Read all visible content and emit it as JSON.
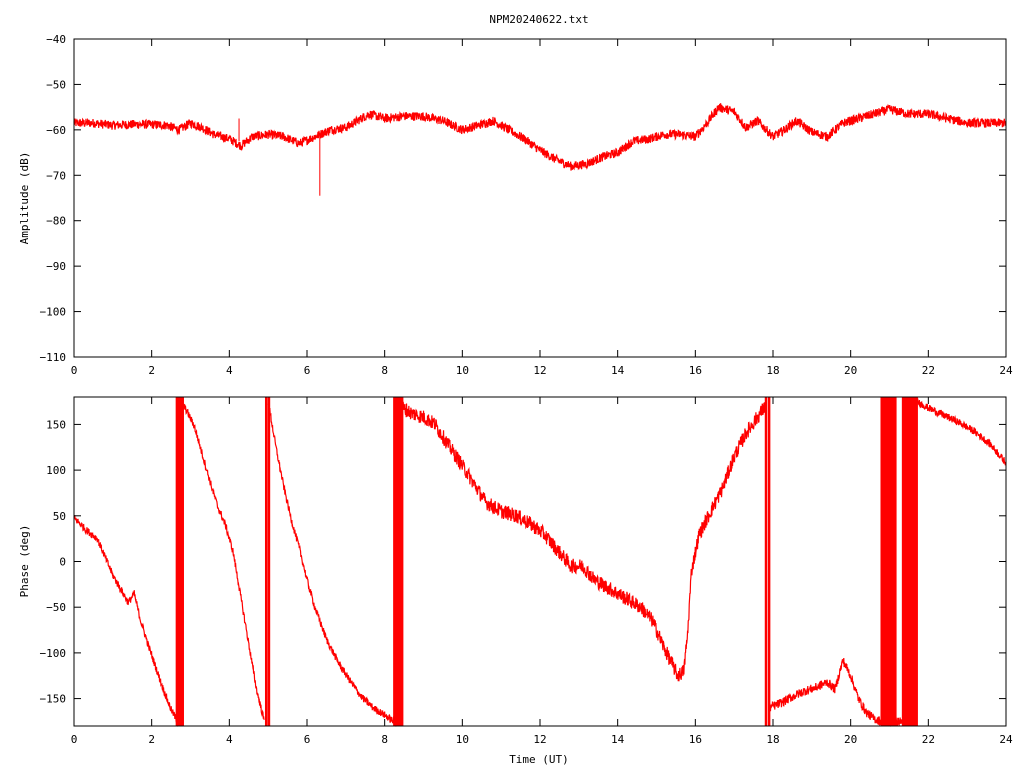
{
  "title": "NPM20240622.txt",
  "colors": {
    "series": "#ff0000",
    "axis": "#000000",
    "background": "#ffffff"
  },
  "chart_data": [
    {
      "type": "line",
      "id": "amplitude",
      "title": "NPM20240622.txt",
      "xlabel": "",
      "ylabel": "Amplitude (dB)",
      "xlim": [
        0,
        24
      ],
      "ylim": [
        -110,
        -40
      ],
      "xticks": [
        0,
        2,
        4,
        6,
        8,
        10,
        12,
        14,
        16,
        18,
        20,
        22,
        24
      ],
      "yticks": [
        -110,
        -100,
        -90,
        -80,
        -70,
        -60,
        -50,
        -40
      ],
      "grid": false,
      "legend": "none",
      "series": [
        {
          "name": "",
          "color": "#ff0000",
          "x": [
            0,
            0.5,
            1.0,
            1.5,
            2.0,
            2.4,
            2.7,
            3.0,
            3.3,
            3.6,
            4.0,
            4.3,
            4.6,
            5.0,
            5.4,
            5.8,
            6.2,
            6.6,
            7.0,
            7.3,
            7.6,
            8.0,
            8.5,
            9.0,
            9.5,
            10.0,
            10.4,
            10.8,
            11.2,
            11.6,
            12.0,
            12.4,
            12.8,
            13.2,
            13.6,
            14.0,
            14.4,
            14.8,
            15.2,
            15.6,
            16.0,
            16.3,
            16.6,
            17.0,
            17.3,
            17.6,
            18.0,
            18.3,
            18.6,
            19.0,
            19.4,
            19.8,
            20.2,
            20.6,
            21.0,
            21.5,
            22.0,
            22.5,
            23.0,
            23.5,
            24.0
          ],
          "y": [
            -58.5,
            -58.5,
            -59.0,
            -58.8,
            -58.8,
            -59.0,
            -60.0,
            -58.5,
            -59.5,
            -61.0,
            -62.0,
            -63.5,
            -61.5,
            -61.0,
            -61.5,
            -63.0,
            -61.5,
            -60.0,
            -59.5,
            -58.0,
            -56.5,
            -57.5,
            -57.0,
            -57.0,
            -58.0,
            -60.0,
            -59.0,
            -58.0,
            -60.0,
            -62.0,
            -64.5,
            -66.5,
            -68.0,
            -67.5,
            -66.0,
            -65.0,
            -62.5,
            -62.0,
            -61.0,
            -61.0,
            -61.5,
            -58.5,
            -55.0,
            -56.0,
            -59.5,
            -58.0,
            -61.5,
            -60.0,
            -58.0,
            -60.5,
            -61.5,
            -58.5,
            -57.5,
            -56.5,
            -55.5,
            -56.5,
            -56.5,
            -57.5,
            -58.5,
            -58.5,
            -58.5
          ],
          "noise": 1.0,
          "spikes": [
            {
              "x": 4.25,
              "y_top": -57.5,
              "y_bottom": -62.5
            },
            {
              "x": 6.33,
              "y_top": -61.0,
              "y_bottom": -74.5
            }
          ]
        }
      ]
    },
    {
      "type": "line",
      "id": "phase",
      "xlabel": "Time (UT)",
      "ylabel": "Phase (deg)",
      "xlim": [
        0,
        24
      ],
      "ylim": [
        -180,
        180
      ],
      "xticks": [
        0,
        2,
        4,
        6,
        8,
        10,
        12,
        14,
        16,
        18,
        20,
        22,
        24
      ],
      "yticks": [
        -150,
        -100,
        -50,
        0,
        50,
        100,
        150
      ],
      "grid": false,
      "legend": "none",
      "series": [
        {
          "name": "",
          "color": "#ff0000",
          "segments": [
            {
              "x": [
                0,
                0.3,
                0.6,
                0.8,
                1.0,
                1.2,
                1.4,
                1.55,
                1.7,
                1.9,
                2.1,
                2.3,
                2.5,
                2.7
              ],
              "y": [
                48,
                35,
                25,
                5,
                -15,
                -30,
                -45,
                -35,
                -62,
                -90,
                -115,
                -140,
                -162,
                -178
              ],
              "noise": 4
            },
            {
              "x": [
                2.75,
                2.9,
                3.1,
                3.3,
                3.5,
                3.7,
                3.9,
                4.1,
                4.3,
                4.5,
                4.7,
                4.9
              ],
              "y": [
                175,
                165,
                148,
                118,
                88,
                60,
                40,
                10,
                -40,
                -90,
                -140,
                -175
              ],
              "noise": 4
            },
            {
              "x": [
                5.0,
                5.2,
                5.4,
                5.6,
                5.8,
                6.0,
                6.2,
                6.5,
                6.8,
                7.1,
                7.4,
                7.7,
                8.0,
                8.3
              ],
              "y": [
                175,
                125,
                82,
                45,
                15,
                -20,
                -50,
                -85,
                -110,
                -130,
                -148,
                -160,
                -168,
                -177
              ],
              "noise": 4
            },
            {
              "x": [
                8.4,
                8.7,
                9.0,
                9.3,
                9.6,
                10.0,
                10.3,
                10.6,
                11.0,
                11.4,
                11.8,
                12.1,
                12.5,
                12.8,
                13.1,
                13.4,
                13.8,
                14.2,
                14.6,
                14.9,
                15.2,
                15.4,
                15.55,
                15.7,
                15.8,
                15.9,
                16.1,
                16.4,
                16.7,
                17.0,
                17.3,
                17.6,
                17.8
              ],
              "y": [
                170,
                162,
                158,
                150,
                130,
                105,
                85,
                65,
                55,
                50,
                40,
                30,
                10,
                -5,
                -5,
                -20,
                -30,
                -40,
                -50,
                -65,
                -95,
                -112,
                -125,
                -120,
                -80,
                -10,
                30,
                55,
                80,
                115,
                140,
                158,
                170
              ],
              "noise": 8
            },
            {
              "x": [
                17.9,
                18.2,
                18.5,
                18.8,
                19.1,
                19.4,
                19.6,
                19.8,
                20.0,
                20.2,
                20.4,
                20.6,
                20.8,
                21.0,
                21.3,
                21.6
              ],
              "y": [
                -160,
                -155,
                -148,
                -142,
                -138,
                -132,
                -140,
                -108,
                -125,
                -150,
                -165,
                -172,
                -175,
                -176,
                -175,
                -174
              ],
              "noise": 5
            },
            {
              "x": [
                21.7,
                22.0,
                22.4,
                22.8,
                23.2,
                23.6,
                24.0
              ],
              "y": [
                175,
                168,
                160,
                152,
                142,
                128,
                108
              ],
              "noise": 4
            }
          ],
          "wrap_bands": [
            {
              "x_start": 2.65,
              "x_end": 2.8,
              "count": 4
            },
            {
              "x_start": 4.95,
              "x_end": 5.02,
              "count": 2
            },
            {
              "x_start": 8.25,
              "x_end": 8.45,
              "count": 6
            },
            {
              "x_start": 17.82,
              "x_end": 17.9,
              "count": 2
            },
            {
              "x_start": 20.8,
              "x_end": 21.15,
              "count": 14
            },
            {
              "x_start": 21.35,
              "x_end": 21.7,
              "count": 14
            }
          ]
        }
      ]
    }
  ]
}
